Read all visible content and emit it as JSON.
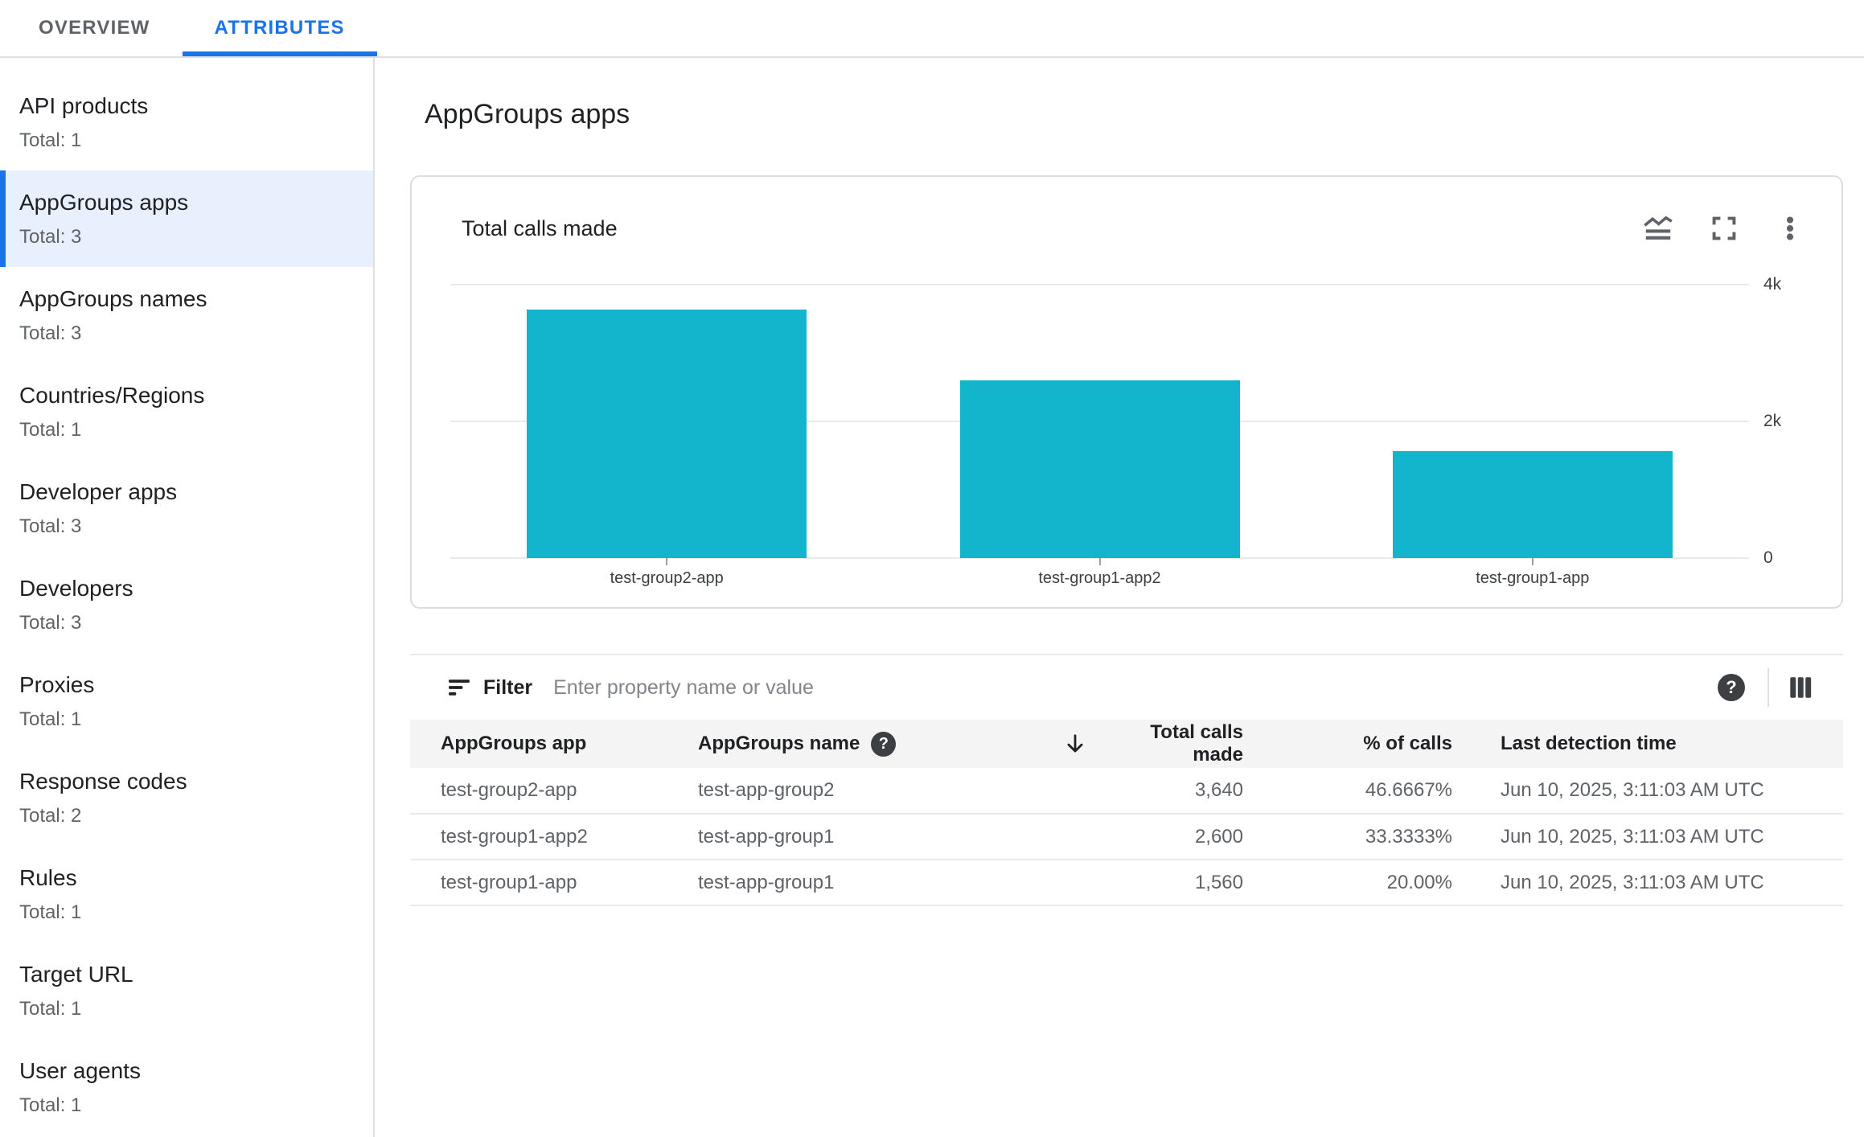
{
  "tabs": [
    {
      "label": "OVERVIEW",
      "active": false
    },
    {
      "label": "ATTRIBUTES",
      "active": true
    }
  ],
  "sidebar": {
    "items": [
      {
        "label": "API products",
        "total": "Total: 1"
      },
      {
        "label": "AppGroups apps",
        "total": "Total: 3",
        "selected": true
      },
      {
        "label": "AppGroups names",
        "total": "Total: 3"
      },
      {
        "label": "Countries/Regions",
        "total": "Total: 1"
      },
      {
        "label": "Developer apps",
        "total": "Total: 3"
      },
      {
        "label": "Developers",
        "total": "Total: 3"
      },
      {
        "label": "Proxies",
        "total": "Total: 1"
      },
      {
        "label": "Response codes",
        "total": "Total: 2"
      },
      {
        "label": "Rules",
        "total": "Total: 1"
      },
      {
        "label": "Target URL",
        "total": "Total: 1"
      },
      {
        "label": "User agents",
        "total": "Total: 1"
      }
    ]
  },
  "main": {
    "title": "AppGroups apps"
  },
  "chart_data": {
    "type": "bar",
    "title": "Total calls made",
    "categories": [
      "test-group2-app",
      "test-group1-app2",
      "test-group1-app"
    ],
    "values": [
      3640,
      2600,
      1560
    ],
    "xlabel": "",
    "ylabel": "",
    "ylim": [
      0,
      4000
    ],
    "yticks": [
      {
        "value": 4000,
        "label": "4k"
      },
      {
        "value": 2000,
        "label": "2k"
      },
      {
        "value": 0,
        "label": "0"
      }
    ],
    "bar_color": "#12b5cb",
    "grid": true,
    "legend": false,
    "ytick_side": "right"
  },
  "card_icons": [
    "chart-type",
    "fullscreen",
    "more-options"
  ],
  "filter": {
    "label": "Filter",
    "placeholder": "Enter property name or value"
  },
  "icons": {
    "help_glyph": "?"
  },
  "table": {
    "headers": [
      {
        "label": "AppGroups app"
      },
      {
        "label": "AppGroups name",
        "has_help": true
      },
      {
        "label": "Total calls made",
        "sorted": "desc"
      },
      {
        "label": "% of calls"
      },
      {
        "label": "Last detection time"
      }
    ],
    "rows": [
      {
        "cells": [
          "test-group2-app",
          "test-app-group2",
          "3,640",
          "46.6667%",
          "Jun 10, 2025, 3:11:03 AM UTC"
        ]
      },
      {
        "cells": [
          "test-group1-app2",
          "test-app-group1",
          "2,600",
          "33.3333%",
          "Jun 10, 2025, 3:11:03 AM UTC"
        ]
      },
      {
        "cells": [
          "test-group1-app",
          "test-app-group1",
          "1,560",
          "20.00%",
          "Jun 10, 2025, 3:11:03 AM UTC"
        ]
      }
    ]
  },
  "colors": {
    "accent": "#1a73e8",
    "bar": "#12b5cb",
    "selected_bg": "#e8f0fe",
    "header_bg": "#f4f4f4"
  }
}
